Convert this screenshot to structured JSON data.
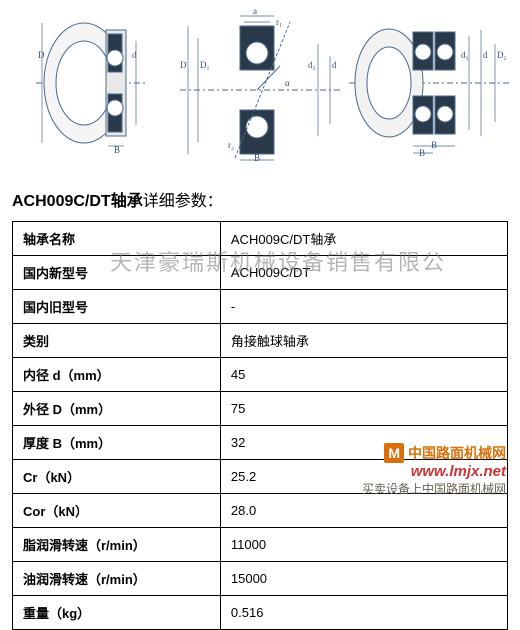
{
  "title": {
    "model": "ACH009C/DT轴承",
    "suffix": "详细参数："
  },
  "watermark": {
    "company": "天津豪瑞斯机械设备销售有限公",
    "footer_cn": "中国路面机械网",
    "footer_url": "www.lmjx.net",
    "footer_sub": "买卖设备上中国路面机械网"
  },
  "diagram_labels": {
    "a": "a",
    "r1": "r₁",
    "r2": "r₂",
    "D": "D",
    "D1": "D₁",
    "D2": "D₂",
    "D3": "D₃",
    "d": "d",
    "d1": "d₁",
    "d2": "d₂",
    "B": "B",
    "alpha": "α"
  },
  "spec": {
    "rows": [
      {
        "label": "轴承名称",
        "value": "ACH009C/DT轴承"
      },
      {
        "label": "国内新型号",
        "value": "ACH009C/DT"
      },
      {
        "label": "国内旧型号",
        "value": "-"
      },
      {
        "label": "类别",
        "value": "角接触球轴承"
      },
      {
        "label": "内径 d（mm）",
        "value": "45"
      },
      {
        "label": "外径 D（mm）",
        "value": "75"
      },
      {
        "label": "厚度 B（mm）",
        "value": "32"
      },
      {
        "label": "Cr（kN）",
        "value": "25.2"
      },
      {
        "label": "Cor（kN）",
        "value": "28.0"
      },
      {
        "label": "脂润滑转速（r/min）",
        "value": "11000"
      },
      {
        "label": "油润滑转速（r/min）",
        "value": "15000"
      },
      {
        "label": "重量（kg）",
        "value": "0.516"
      }
    ]
  }
}
